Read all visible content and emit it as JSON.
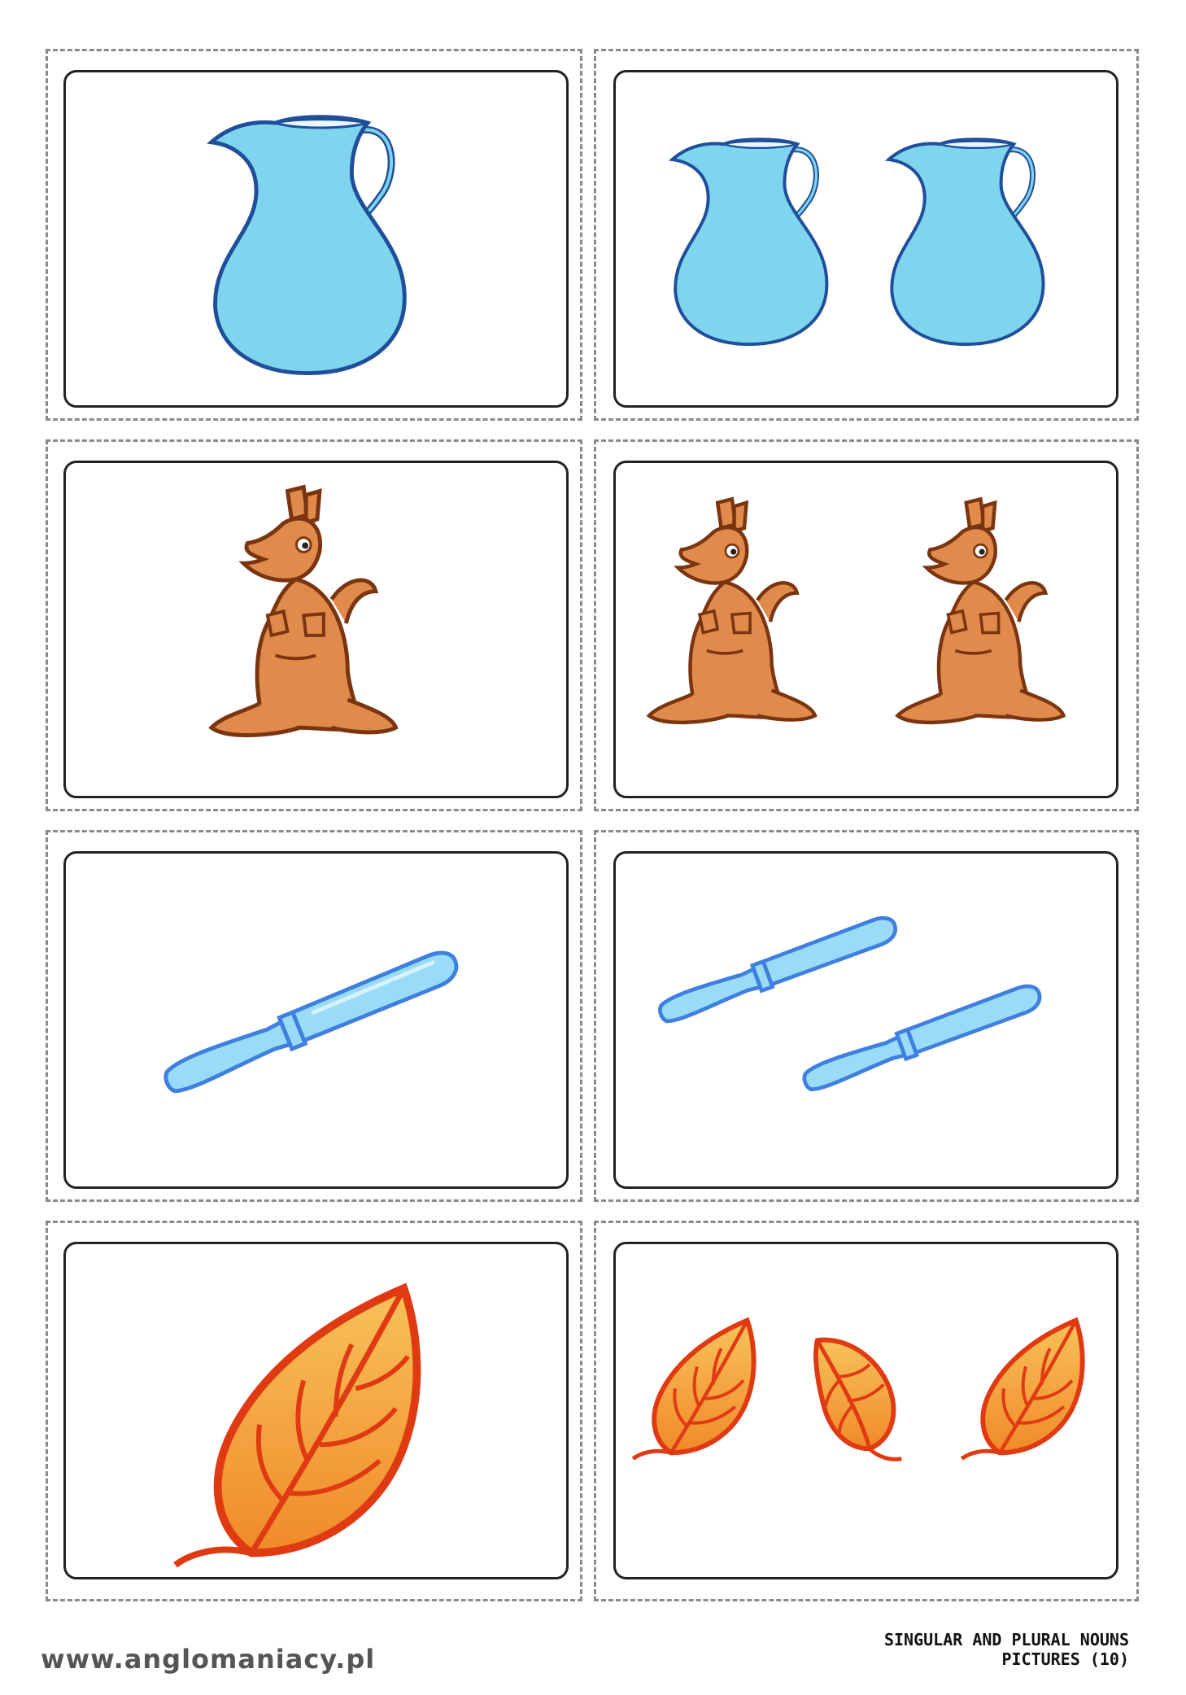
{
  "footer": {
    "site": "www.anglomaniacy.pl",
    "title_line1": "SINGULAR AND PLURAL NOUNS",
    "title_line2": "PICTURES (10)"
  },
  "cards": [
    {
      "row": 1,
      "form": "singular",
      "picture": "jug-icon",
      "count": 1
    },
    {
      "row": 1,
      "form": "plural",
      "picture": "jug-icon",
      "count": 2
    },
    {
      "row": 2,
      "form": "singular",
      "picture": "kangaroo-icon",
      "count": 1
    },
    {
      "row": 2,
      "form": "plural",
      "picture": "kangaroo-icon",
      "count": 2
    },
    {
      "row": 3,
      "form": "singular",
      "picture": "knife-icon",
      "count": 1
    },
    {
      "row": 3,
      "form": "plural",
      "picture": "knife-icon",
      "count": 2
    },
    {
      "row": 4,
      "form": "singular",
      "picture": "leaf-icon",
      "count": 1
    },
    {
      "row": 4,
      "form": "plural",
      "picture": "leaf-icon",
      "count": 3
    }
  ],
  "colors": {
    "jug": "#7fd4ee",
    "jug_outline": "#1f4e9a",
    "kangaroo": "#e08a4c",
    "kangaroo_outline": "#7a3510",
    "knife": "#9adcf7",
    "knife_outline": "#3f7fe0",
    "leaf": "#f3a53a",
    "leaf_outline": "#e03a12"
  }
}
